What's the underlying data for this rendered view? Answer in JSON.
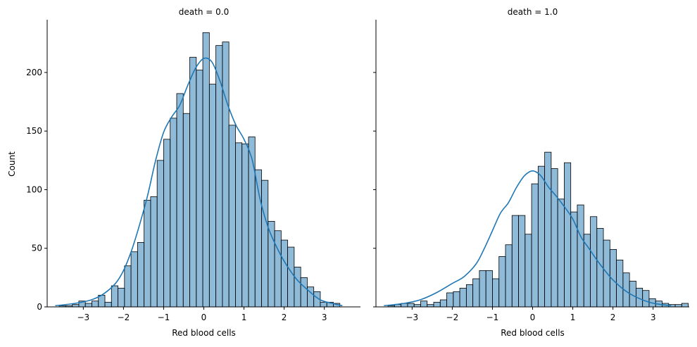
{
  "figure": {
    "ylabel": "Count",
    "colors": {
      "bar_fill": "#1f77b4",
      "bar_fill_opacity": 0.5,
      "bar_edge": "#000000",
      "kde_line": "#1f77b4",
      "axis": "#000000",
      "background": "#ffffff"
    }
  },
  "chart_data": [
    {
      "type": "bar",
      "title": "death = 0.0",
      "xlabel": "Red blood cells",
      "ylabel": "Count",
      "xlim": [
        -3.9,
        3.9
      ],
      "ylim": [
        0,
        245
      ],
      "xticks": [
        -3,
        -2,
        -1,
        0,
        1,
        2,
        3
      ],
      "xtick_labels": [
        "−3",
        "−2",
        "−1",
        "0",
        "1",
        "2",
        "3"
      ],
      "yticks": [
        0,
        50,
        100,
        150,
        200
      ],
      "yticks_labels": [
        "0",
        "50",
        "100",
        "150",
        "200"
      ],
      "grid": false,
      "legend": "none",
      "bin_start": -3.6,
      "bin_width": 0.1625,
      "series": [
        {
          "values": [
            1,
            1,
            2,
            5,
            3,
            5,
            10,
            4,
            18,
            16,
            35,
            47,
            55,
            91,
            94,
            125,
            143,
            161,
            182,
            165,
            213,
            202,
            234,
            190,
            223,
            226,
            155,
            140,
            139,
            145,
            117,
            108,
            73,
            65,
            57,
            51,
            34,
            25,
            17,
            13,
            4,
            4,
            3
          ]
        }
      ],
      "kde": {
        "x": [
          -3.7,
          -3.2,
          -2.8,
          -2.5,
          -2.2,
          -2.0,
          -1.8,
          -1.6,
          -1.4,
          -1.2,
          -1.0,
          -0.8,
          -0.6,
          -0.4,
          -0.2,
          0.0,
          0.2,
          0.4,
          0.6,
          0.8,
          1.0,
          1.2,
          1.4,
          1.6,
          1.8,
          2.0,
          2.3,
          2.6,
          2.9,
          3.2,
          3.45
        ],
        "y": [
          1,
          3,
          6,
          11,
          20,
          31,
          48,
          70,
          95,
          125,
          149,
          162,
          172,
          189,
          204,
          212,
          209,
          193,
          172,
          155,
          143,
          126,
          92,
          68,
          52,
          39,
          24,
          14,
          6,
          3,
          1
        ]
      }
    },
    {
      "type": "bar",
      "title": "death = 1.0",
      "xlabel": "Red blood cells",
      "ylabel": "",
      "xlim": [
        -3.9,
        3.9
      ],
      "ylim": [
        0,
        245
      ],
      "xticks": [
        -3,
        -2,
        -1,
        0,
        1,
        2,
        3
      ],
      "xtick_labels": [
        "−3",
        "−2",
        "−1",
        "0",
        "1",
        "2",
        "3"
      ],
      "yticks": [
        0,
        50,
        100,
        150,
        200
      ],
      "grid": false,
      "legend": "none",
      "bin_start": -3.6,
      "bin_width": 0.1625,
      "series": [
        {
          "values": [
            1,
            2,
            3,
            3,
            2,
            5,
            2,
            4,
            6,
            12,
            13,
            16,
            19,
            24,
            31,
            31,
            24,
            43,
            53,
            78,
            78,
            62,
            105,
            120,
            132,
            118,
            92,
            123,
            81,
            87,
            62,
            77,
            67,
            57,
            49,
            40,
            29,
            22,
            16,
            14,
            7,
            5,
            3,
            2,
            2,
            3
          ]
        }
      ],
      "kde": {
        "x": [
          -3.7,
          -3.2,
          -2.8,
          -2.4,
          -2.0,
          -1.7,
          -1.4,
          -1.2,
          -1.0,
          -0.8,
          -0.6,
          -0.4,
          -0.2,
          0.0,
          0.2,
          0.4,
          0.6,
          0.8,
          1.0,
          1.2,
          1.4,
          1.6,
          1.8,
          2.0,
          2.3,
          2.6,
          2.9,
          3.2,
          3.45
        ],
        "y": [
          1,
          3,
          6,
          12,
          20,
          26,
          37,
          50,
          65,
          80,
          89,
          102,
          112,
          116,
          112,
          102,
          94,
          85,
          75,
          60,
          50,
          40,
          31,
          23,
          14,
          8,
          4,
          2,
          1
        ]
      }
    }
  ]
}
